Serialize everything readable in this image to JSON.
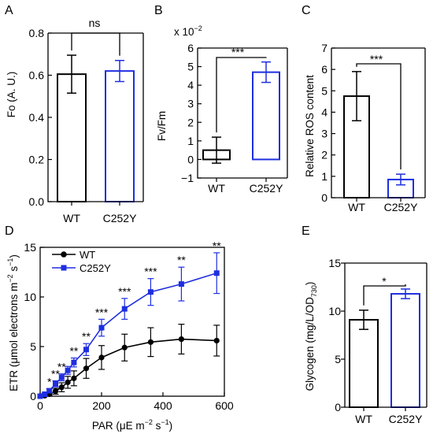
{
  "chart_data": [
    {
      "id": "A",
      "type": "bar",
      "panel_label": "A",
      "categories": [
        "WT",
        "C252Y"
      ],
      "values": [
        0.605,
        0.62
      ],
      "errors": [
        0.09,
        0.05
      ],
      "bar_colors": [
        "#000000",
        "#1f2ee0"
      ],
      "ylabel": "Fo (A. U.)",
      "ylim": [
        0,
        0.8
      ],
      "yticks": [
        "0.0",
        "0.2",
        "0.4",
        "0.6",
        "0.8"
      ],
      "significance": "ns"
    },
    {
      "id": "B",
      "type": "bar",
      "panel_label": "B",
      "categories": [
        "WT",
        "C252Y"
      ],
      "values": [
        0.5,
        4.7
      ],
      "errors": [
        0.7,
        0.55
      ],
      "bar_colors": [
        "#000000",
        "#1f2ee0"
      ],
      "ylabel": "Fv/Fm",
      "scale_note": "x 10",
      "scale_exp": "−2",
      "ylim": [
        -1,
        6
      ],
      "yticks": [
        "−1",
        "0",
        "1",
        "2",
        "3",
        "4",
        "5",
        "6"
      ],
      "significance": "***"
    },
    {
      "id": "C",
      "type": "bar",
      "panel_label": "C",
      "categories": [
        "WT",
        "C252Y"
      ],
      "values": [
        4.75,
        0.85
      ],
      "errors": [
        1.15,
        0.25
      ],
      "bar_colors": [
        "#000000",
        "#1f2ee0"
      ],
      "ylabel": "Relative ROS content",
      "ylim": [
        0,
        7
      ],
      "yticks": [
        "0",
        "1",
        "2",
        "3",
        "4",
        "5",
        "6",
        "7"
      ],
      "significance": "***"
    },
    {
      "id": "D",
      "type": "line",
      "panel_label": "D",
      "x": [
        0,
        15,
        30,
        50,
        70,
        90,
        110,
        150,
        200,
        275,
        360,
        460,
        575
      ],
      "series": [
        {
          "name": "WT",
          "color": "#000000",
          "marker": "circle",
          "values": [
            0,
            0.05,
            0.2,
            0.5,
            0.9,
            1.4,
            1.8,
            2.8,
            3.9,
            4.9,
            5.45,
            5.75,
            5.6
          ],
          "errors": [
            0,
            0.05,
            0.15,
            0.3,
            0.45,
            0.6,
            0.75,
            1.0,
            1.2,
            1.35,
            1.45,
            1.5,
            1.55
          ]
        },
        {
          "name": "C252Y",
          "color": "#1f2ee0",
          "marker": "square",
          "values": [
            0,
            0.2,
            0.55,
            1.25,
            1.9,
            2.6,
            3.4,
            4.7,
            6.9,
            8.8,
            10.5,
            11.3,
            12.4
          ],
          "errors": [
            0,
            0.1,
            0.2,
            0.3,
            0.35,
            0.4,
            0.45,
            0.6,
            0.85,
            1.05,
            1.35,
            1.7,
            2.05
          ]
        }
      ],
      "significance": [
        {
          "x": 30,
          "label": "*"
        },
        {
          "x": 50,
          "label": "**"
        },
        {
          "x": 70,
          "label": "**"
        },
        {
          "x": 110,
          "label": "**"
        },
        {
          "x": 150,
          "label": "**"
        },
        {
          "x": 200,
          "label": "***"
        },
        {
          "x": 275,
          "label": "***"
        },
        {
          "x": 360,
          "label": "***"
        },
        {
          "x": 460,
          "label": "**"
        },
        {
          "x": 575,
          "label": "**"
        }
      ],
      "xlabel": "PAR (μE m",
      "xlabel_exp1": "−2",
      "xlabel_mid": " s",
      "xlabel_exp2": "−1",
      "xlabel_end": ")",
      "ylabel": "ETR (μmol electrons m",
      "ylabel_exp1": "−2",
      "ylabel_mid": " s",
      "ylabel_exp2": "−1",
      "ylabel_end": ")",
      "xlim": [
        0,
        600
      ],
      "ylim": [
        0,
        15
      ],
      "xticks": [
        "0",
        "200",
        "400",
        "600"
      ],
      "yticks": [
        "0",
        "5",
        "10",
        "15"
      ],
      "legend": "top-left"
    },
    {
      "id": "E",
      "type": "bar",
      "panel_label": "E",
      "categories": [
        "WT",
        "C252Y"
      ],
      "values": [
        9.1,
        11.8
      ],
      "errors": [
        1.0,
        0.5
      ],
      "bar_colors": [
        "#000000",
        "#1f2ee0"
      ],
      "ylabel": "Glycogen (mg/L/OD",
      "ylabel_sub": "730",
      "ylabel_end": ")",
      "ylim": [
        0,
        15
      ],
      "yticks": [
        "0",
        "5",
        "10",
        "15"
      ],
      "significance": "*"
    }
  ]
}
